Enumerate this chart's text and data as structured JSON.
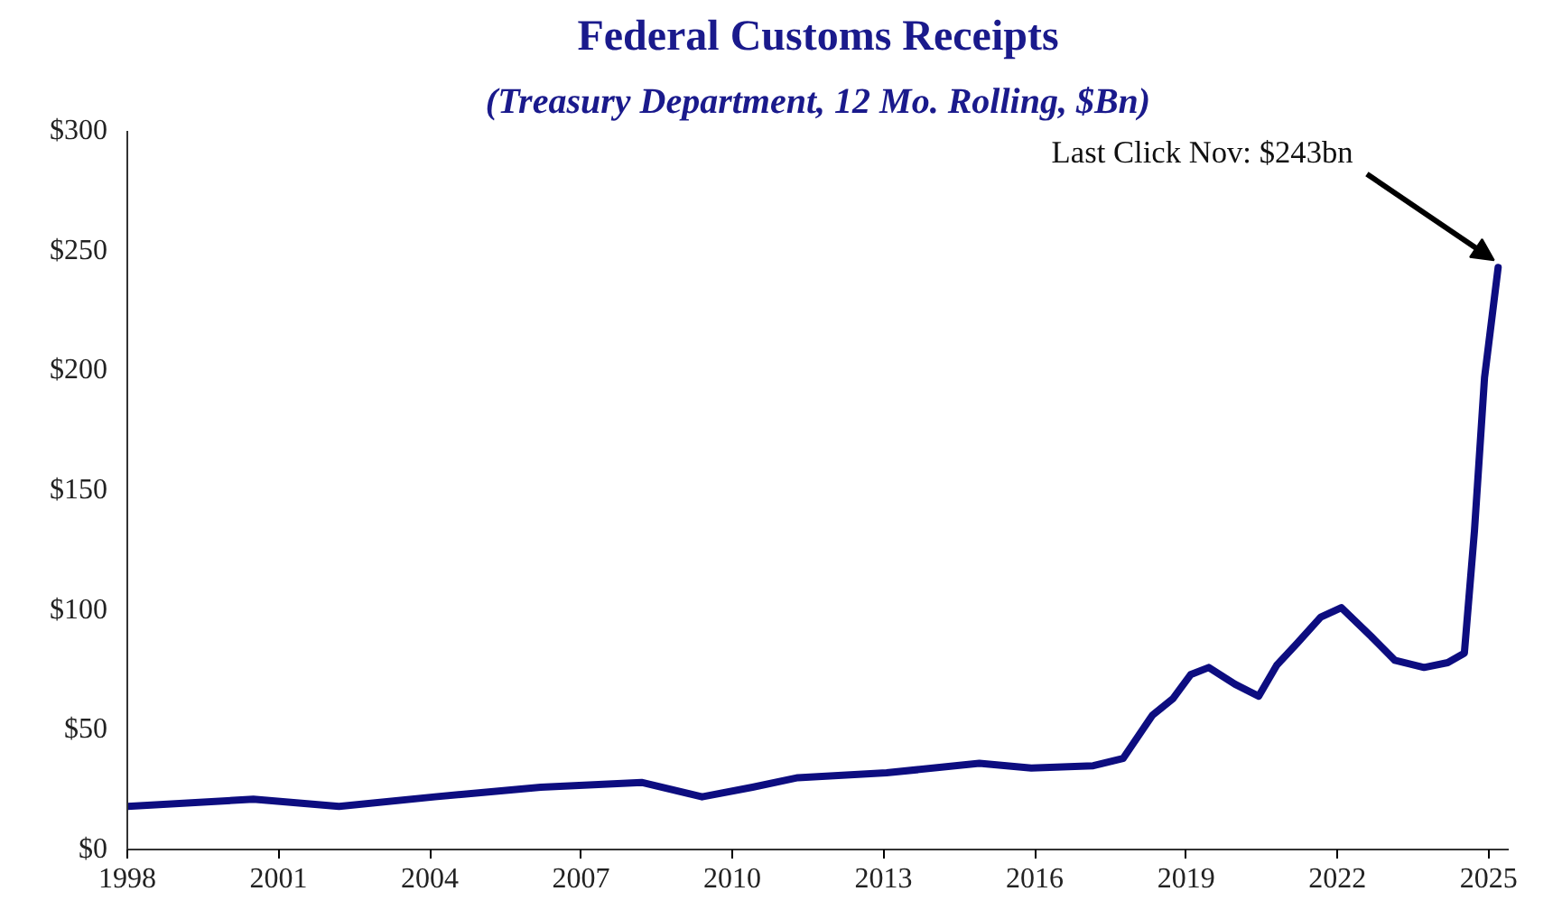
{
  "chart_data": {
    "type": "line",
    "title": "Federal Customs Receipts",
    "subtitle": "(Treasury Department, 12 Mo. Rolling, $Bn)",
    "x": [
      1998,
      2000.5,
      2002.2,
      2004.1,
      2006.2,
      2008.2,
      2009.4,
      2010.4,
      2011.3,
      2013.06,
      2014.9,
      2015.93,
      2017.16,
      2017.75,
      2018.33,
      2018.74,
      2019.09,
      2019.45,
      2019.97,
      2020.44,
      2020.8,
      2021.2,
      2021.67,
      2022.08,
      2022.67,
      2023.14,
      2023.72,
      2024.19,
      2024.52,
      2024.72,
      2024.92,
      2025.19
    ],
    "series": [
      {
        "color": "#0d0d80",
        "values": [
          18,
          21,
          18,
          22,
          26,
          28,
          22,
          26,
          30,
          32,
          36,
          34,
          35,
          38,
          56,
          63,
          73,
          76,
          69,
          64,
          77,
          86,
          97,
          101,
          89,
          79,
          76,
          78,
          82,
          133,
          197,
          243
        ]
      }
    ],
    "xlim": [
      1998,
      2025.4
    ],
    "xticks": [
      1998,
      2001,
      2004,
      2007,
      2010,
      2013,
      2016,
      2019,
      2022,
      2025
    ],
    "ylim": [
      0,
      300
    ],
    "yticks": [
      {
        "value": 0,
        "label": "$0"
      },
      {
        "value": 50,
        "label": "$50"
      },
      {
        "value": 100,
        "label": "$100"
      },
      {
        "value": 150,
        "label": "$150"
      },
      {
        "value": 200,
        "label": "$200"
      },
      {
        "value": 250,
        "label": "$250"
      },
      {
        "value": 300,
        "label": "$300"
      }
    ],
    "annotations": [
      {
        "text": "Last Click Nov: $243bn",
        "x": 2025.19,
        "y": 243
      }
    ],
    "grid": false,
    "marker": "none",
    "line_style": "solid"
  }
}
